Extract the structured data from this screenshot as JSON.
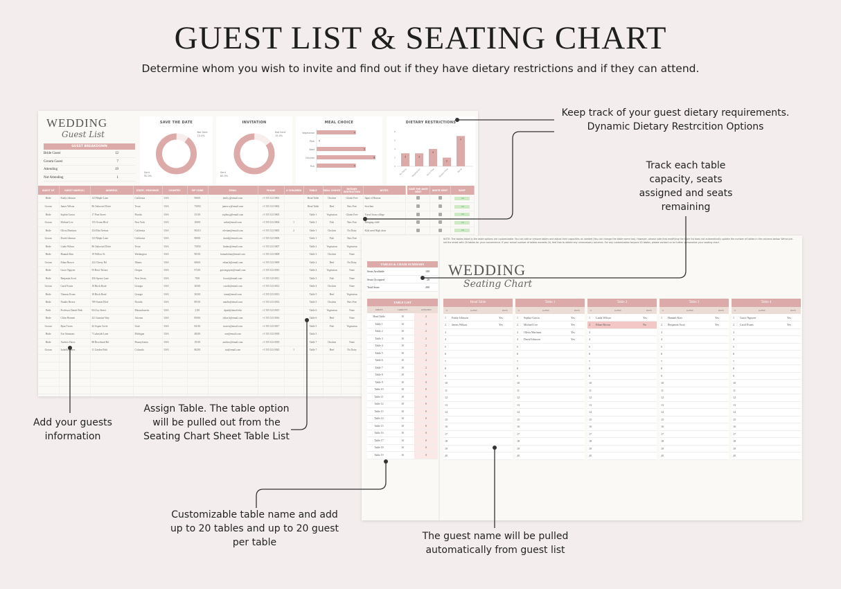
{
  "header": {
    "title": "GUEST LIST & SEATING CHART",
    "subtitle": "Determine whom you wish to invite and find out if they have dietary restrictions and if they can attend."
  },
  "guest_sheet": {
    "logo": {
      "line1": "WEDDING",
      "line2": "Guest List"
    },
    "breakdown": {
      "title": "GUEST BREAKDOWN",
      "rows": [
        {
          "label": "Bride Guest",
          "value": "12"
        },
        {
          "label": "Groom Guest",
          "value": "7"
        },
        {
          "label": "Attending",
          "value": "19"
        },
        {
          "label": "Not Attending",
          "value": "1"
        }
      ]
    },
    "charts": {
      "save_the_date": {
        "title": "SAVE THE DATE",
        "sent_label": "Sent",
        "sent_pct": "90.0%",
        "not_sent_label": "Not Sent",
        "not_sent_pct": "10.0%",
        "sent_fraction": 0.9
      },
      "invitation": {
        "title": "INVITATION",
        "sent_label": "Sent",
        "sent_pct": "85.0%",
        "not_sent_label": "Not Sent",
        "not_sent_pct": "15.0%",
        "sent_fraction": 0.85
      },
      "meal_choice": {
        "title": "MEAL CHOICE",
        "categories": [
          "Vegetarian",
          "Pork",
          "Beef",
          "Chicken",
          "Fish"
        ],
        "values": [
          4,
          0,
          5,
          6,
          4
        ],
        "xlim": [
          0,
          6
        ]
      },
      "dietary": {
        "title": "DIETARY RESTRICTIONS",
        "categories": [
          "No Dairy",
          "Vegetarian",
          "Nuts Free",
          "Gluten Free",
          "None"
        ],
        "values": [
          3,
          3,
          4,
          2,
          7
        ],
        "ylim": [
          0,
          8
        ]
      }
    },
    "columns": [
      "GUEST OF",
      "GUEST NAME(S)",
      "ADDRESS",
      "STATE / PROVINCE",
      "COUNTRY",
      "ZIP CODE",
      "EMAIL",
      "PHONE",
      "# CHILDREN",
      "TABLE",
      "MEAL CHOICE",
      "DIETARY RESTRICTION",
      "NOTES",
      "",
      "SAVE THE DATE SENT",
      "INVITE SENT",
      "RSVP"
    ],
    "rsvp_value": "Yes",
    "rows": [
      [
        "Bride",
        "Emily Johnson",
        "123 Maple Lane",
        "California",
        "USA",
        "90001",
        "emily.j@email.com",
        "+1 555 123 0001",
        "",
        "Head Table",
        "Chicken",
        "Gluten Free",
        "Input of Reason"
      ],
      [
        "Groom",
        "James Wilson",
        "86 Oakwood Drive",
        "Texas",
        "USA",
        "75050",
        "james.w@email.com",
        "+1 555 123 0002",
        "",
        "Head Table",
        "Beef",
        "Nuts Free",
        "Seat him"
      ],
      [
        "Bride",
        "Sophia Garcia",
        "17 Pine Street",
        "Florida",
        "USA",
        "33101",
        "sophia.g@email.com",
        "+1 555 123 0003",
        "",
        "Table 1",
        "Vegetarian",
        "Gluten Free",
        "Travel from college"
      ],
      [
        "Groom",
        "Michael Lee",
        "155 Ocean Blvd",
        "New York",
        "USA",
        "10001",
        "mike@email.com",
        "+1 555 123 0004",
        "1",
        "Table 1",
        "Fish",
        "Nuts Free",
        "Bringing child"
      ],
      [
        "Bride",
        "Olivia Martinez",
        "234 Elm Avenue",
        "California",
        "USA",
        "90210",
        "oliviam@email.com",
        "+1 555 123 0005",
        "2",
        "Table 1",
        "Chicken",
        "No Dairy",
        "Kids need High chair"
      ],
      [
        "Groom",
        "David Johnson",
        "123 Maple Lane",
        "California",
        "USA",
        "90001",
        "davidj@email.com",
        "+1 555 123 0006",
        "",
        "Table 1",
        "Fish",
        "Nuts Free",
        ""
      ],
      [
        "Bride",
        "Linda Wilson",
        "86 Oakwood Drive",
        "Texas",
        "USA",
        "75050",
        "lindaw@email.com",
        "+1 555 123 0007",
        "",
        "Table 2",
        "Vegetarian",
        "Vegetarian",
        ""
      ],
      [
        "Bride",
        "Hannah Kim",
        "19 Willow St",
        "Washington",
        "USA",
        "98101",
        "hannah.kim@email.com",
        "+1 555 123 0008",
        "",
        "Table 3",
        "Chicken",
        "None",
        ""
      ],
      [
        "Groom",
        "Ethan Brown",
        "222 Cherry Rd",
        "Illinois",
        "USA",
        "60601",
        "ethan.b@email.com",
        "+1 555 123 0009",
        "",
        "Table 2",
        "Beef",
        "No Dairy",
        ""
      ],
      [
        "Bride",
        "Grace Nguyen",
        "93 Rose Terrace",
        "Oregon",
        "USA",
        "97201",
        "gracenguyen@email.com",
        "+1 555 123 0010",
        "",
        "Table 4",
        "Vegetarian",
        "None",
        ""
      ],
      [
        "Bride",
        "Benjamin Scott",
        "456 Spruce Lane",
        "New Jersey",
        "USA",
        "7001",
        "bscott@email.com",
        "+1 555 123 0011",
        "",
        "Table 3",
        "Fish",
        "None",
        ""
      ],
      [
        "Groom",
        "Carol Evans",
        "18 Birch Road",
        "Georgia",
        "USA",
        "30301",
        "carole@email.com",
        "+1 555 123 0012",
        "",
        "Table 4",
        "Chicken",
        "None",
        ""
      ],
      [
        "Bride",
        "Thomas Evans",
        "18 Birch Road",
        "Georgia",
        "USA",
        "30301",
        "toma@email.com",
        "+1 555 123 0013",
        "",
        "Table 5",
        "Beef",
        "Vegetarian",
        ""
      ],
      [
        "Bride",
        "Natalie Rivera",
        "789 Sunset Blvd",
        "Nevada",
        "USA",
        "89101",
        "natalie@email.com",
        "+1 555 123 0014",
        "",
        "Table 5",
        "Chicken",
        "Nuts Free",
        ""
      ],
      [
        "Both",
        "Professor Daniel Park",
        "654 Ivy Street",
        "Massachusetts",
        "USA",
        "2101",
        "dpark@email.edu",
        "+1 555 123 0015",
        "",
        "Table 6",
        "Vegetarian",
        "None",
        ""
      ],
      [
        "Bride",
        "Chloe Bennett",
        "321 Jasmine Way",
        "Arizona",
        "USA",
        "85001",
        "chloe.b@email.com",
        "+1 555 123 0016",
        "",
        "Table 6",
        "Beef",
        "None",
        ""
      ],
      [
        "Groom",
        "Ryan Torres",
        "42 Aspen Circle",
        "Utah",
        "USA",
        "84101",
        "rtorres@email.com",
        "+1 555 123 0017",
        "",
        "Table 5",
        "Fish",
        "Vegetarian",
        ""
      ],
      [
        "Bride",
        "Zoe Simmons",
        "7 Lakeside Lane",
        "Michigan",
        "USA",
        "48201",
        "zoe@email.com",
        "+1 555 123 0018",
        "",
        "Table 5",
        "",
        "",
        ""
      ],
      [
        "Bride",
        "Andrew Davis",
        "88 Riverhead Rd",
        "Pennsylvania",
        "USA",
        "19101",
        "andrew@email.com",
        "+1 555 123 0019",
        "",
        "Table 7",
        "Chicken",
        "None",
        ""
      ],
      [
        "Groom",
        "Isabella Flores",
        "11 Garden Path",
        "Colorado",
        "USA",
        "80201",
        "isa@email.com",
        "+1 555 123 0020",
        "1",
        "Table 7",
        "Beef",
        "No Dairy",
        ""
      ]
    ]
  },
  "seating_sheet": {
    "note": "NOTE: The tables listed in the table options are customizable. You can add or remove tables and adjust their capacities as needed (You can change the table name too). However, please note that modifying the table list does not automatically update the number of tables in the columns below. We've pre-set the sheet with 20 tables for your convenience. If your actual number of tables exceeds 20, feel free to delete any unnecessary columns. For any customization beyond 20 tables, please contact us to further personalize your seating chart.",
    "logo": {
      "line1": "WEDDING",
      "line2": "Seating Chart"
    },
    "summary": {
      "title": "TABLES & CHAIR SUMMARY",
      "rows": [
        {
          "label": "Seats Available",
          "value": "180"
        },
        {
          "label": "Seats Occupied",
          "value": "20"
        },
        {
          "label": "Total Seats",
          "value": "200"
        }
      ]
    },
    "table_list": {
      "title": "TABLE LIST",
      "columns": [
        "TABLES",
        "CAPACITY",
        "ASSIGNED"
      ],
      "rows": [
        [
          "Head Table",
          "10",
          "2"
        ],
        [
          "Table 1",
          "10",
          "4"
        ],
        [
          "Table 2",
          "10",
          "2"
        ],
        [
          "Table 3",
          "10",
          "2"
        ],
        [
          "Table 4",
          "10",
          "2"
        ],
        [
          "Table 5",
          "10",
          "4"
        ],
        [
          "Table 6",
          "10",
          "2"
        ],
        [
          "Table 7",
          "10",
          "2"
        ],
        [
          "Table 8",
          "10",
          "0"
        ],
        [
          "Table 9",
          "10",
          "0"
        ],
        [
          "Table 10",
          "10",
          "0"
        ],
        [
          "Table 11",
          "10",
          "0"
        ],
        [
          "Table 12",
          "10",
          "0"
        ],
        [
          "Table 13",
          "10",
          "0"
        ],
        [
          "Table 14",
          "10",
          "0"
        ],
        [
          "Table 15",
          "10",
          "0"
        ],
        [
          "Table 16",
          "10",
          "0"
        ],
        [
          "Table 17",
          "10",
          "0"
        ],
        [
          "Table 18",
          "10",
          "0"
        ],
        [
          "Table 19",
          "10",
          "0"
        ]
      ]
    },
    "seat_columns": [
      "#",
      "GUEST",
      "RSVP"
    ],
    "tables": [
      {
        "name": "Head Table",
        "guests": [
          [
            "Emily Johnson",
            "Yes"
          ],
          [
            "James Wilson",
            "Yes"
          ]
        ]
      },
      {
        "name": "Table 1",
        "guests": [
          [
            "Sophia Garcia",
            "Yes"
          ],
          [
            "Michael Lee",
            "Yes"
          ],
          [
            "Olivia Martinez",
            "Yes"
          ],
          [
            "David Johnson",
            "Yes"
          ]
        ]
      },
      {
        "name": "Table 2",
        "guests": [
          [
            "Linda Wilson",
            "Yes"
          ],
          [
            "Ethan Brown",
            "No"
          ]
        ]
      },
      {
        "name": "Table 3",
        "guests": [
          [
            "Hannah Kim",
            "Yes"
          ],
          [
            "Benjamin Scott",
            "Yes"
          ]
        ]
      },
      {
        "name": "Table 4",
        "guests": [
          [
            "Grace Nguyen",
            "Yes"
          ],
          [
            "Carol Evans",
            "Yes"
          ]
        ]
      }
    ]
  },
  "annotations": {
    "dietary": "Keep track of your guest dietary requirements. Dynamic Dietary Restrcition Options",
    "capacity": "Track each table capacity, seats assigned and seats remaining",
    "guests_info": "Add your guests information",
    "assign_table": "Assign Table. The table option will be pulled out from the Seating Chart Sheet Table List",
    "customizable": "Customizable table name and add up to 20 tables and up to 20 guest per table",
    "guest_pulled": "The guest name will be pulled automatically from guest list"
  },
  "colors": {
    "accent": "#dcaaa8",
    "background": "#f3eded",
    "sheet": "#fbf9f5",
    "rsvp_no": "#f3c7c5",
    "rsvp_yes": "#cfe9c5"
  }
}
